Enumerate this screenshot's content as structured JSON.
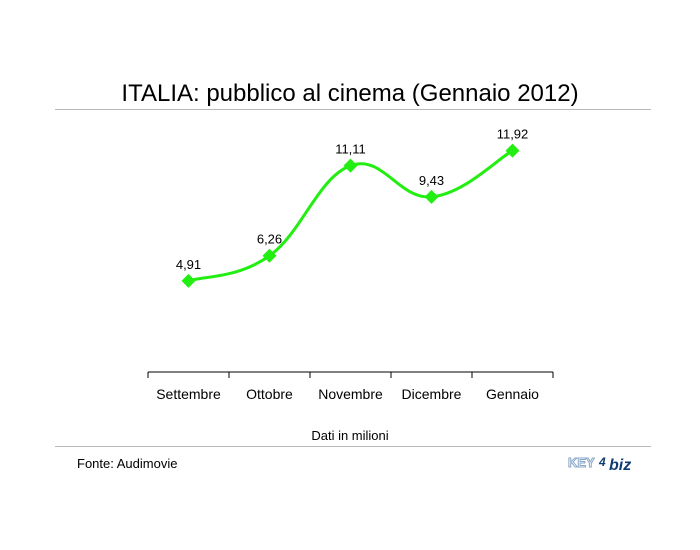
{
  "chart_data": {
    "type": "line",
    "title": "ITALIA: pubblico al cinema (Gennaio 2012)",
    "categories": [
      "Settembre",
      "Ottobre",
      "Novembre",
      "Dicembre",
      "Gennaio"
    ],
    "values": [
      4.91,
      6.26,
      11.11,
      9.43,
      11.92
    ],
    "value_labels": [
      "4,91",
      "6,26",
      "11,11",
      "9,43",
      "11,92"
    ],
    "xlabel": "Dati in milioni",
    "ylabel": "",
    "ylim": [
      0,
      14
    ],
    "grid": false,
    "legend": "none",
    "line_color": "#22ee11",
    "marker": "diamond",
    "smooth": true
  },
  "footer": {
    "source": "Fonte: Audimovie",
    "logo_text": "KEY4biz",
    "logo_parts": [
      "KEY",
      "4",
      "biz"
    ]
  },
  "colors": {
    "rule": "#b9b9b9",
    "axis": "#000000",
    "logo_main": "#0f3d73",
    "logo_outline": "#8aa7c8"
  }
}
